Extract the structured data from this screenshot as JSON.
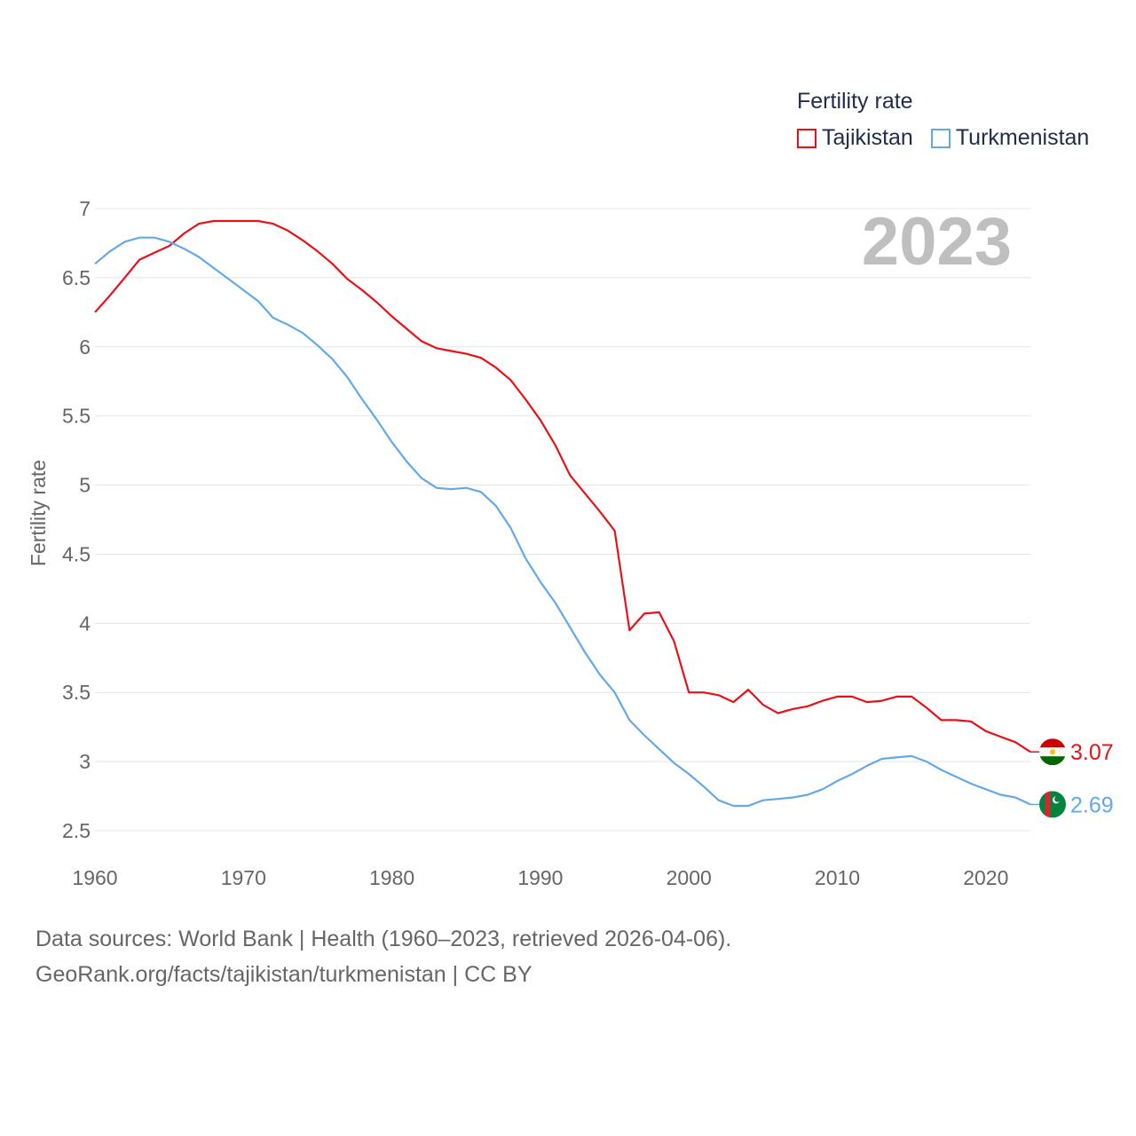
{
  "legend": {
    "title": "Fertility rate",
    "items": [
      {
        "label": "Tajikistan",
        "color": "#e8111a"
      },
      {
        "label": "Turkmenistan",
        "color": "#65a8e6"
      }
    ]
  },
  "footer": {
    "line1": "Data sources: World Bank | Health (1960–2023, retrieved 2026-04-06).",
    "line2": "GeoRank.org/facts/tajikistan/turkmenistan | CC BY"
  },
  "chart_data": {
    "type": "line",
    "title": "2023",
    "xlabel": "",
    "ylabel": "Fertility rate",
    "xlim": [
      1960,
      2023
    ],
    "ylim": [
      2.5,
      7
    ],
    "x_ticks": [
      1960,
      1970,
      1980,
      1990,
      2000,
      2010,
      2020
    ],
    "y_ticks": [
      2.5,
      3,
      3.5,
      4,
      4.5,
      5,
      5.5,
      6,
      6.5,
      7
    ],
    "grid": true,
    "series": [
      {
        "name": "Tajikistan",
        "color": "#e8111a",
        "end_label": "3.07",
        "flag": "tajikistan-flag",
        "values": [
          [
            1960,
            6.25
          ],
          [
            1961,
            6.37
          ],
          [
            1962,
            6.5
          ],
          [
            1963,
            6.63
          ],
          [
            1964,
            6.68
          ],
          [
            1965,
            6.73
          ],
          [
            1966,
            6.82
          ],
          [
            1967,
            6.89
          ],
          [
            1968,
            6.91
          ],
          [
            1969,
            6.91
          ],
          [
            1970,
            6.91
          ],
          [
            1971,
            6.91
          ],
          [
            1972,
            6.89
          ],
          [
            1973,
            6.84
          ],
          [
            1974,
            6.77
          ],
          [
            1975,
            6.69
          ],
          [
            1976,
            6.6
          ],
          [
            1977,
            6.49
          ],
          [
            1978,
            6.41
          ],
          [
            1979,
            6.32
          ],
          [
            1980,
            6.22
          ],
          [
            1981,
            6.13
          ],
          [
            1982,
            6.04
          ],
          [
            1983,
            5.99
          ],
          [
            1984,
            5.97
          ],
          [
            1985,
            5.95
          ],
          [
            1986,
            5.92
          ],
          [
            1987,
            5.85
          ],
          [
            1988,
            5.76
          ],
          [
            1989,
            5.62
          ],
          [
            1990,
            5.47
          ],
          [
            1991,
            5.29
          ],
          [
            1992,
            5.07
          ],
          [
            1993,
            4.94
          ],
          [
            1994,
            4.81
          ],
          [
            1995,
            4.67
          ],
          [
            1996,
            3.95
          ],
          [
            1997,
            4.07
          ],
          [
            1998,
            4.08
          ],
          [
            1999,
            3.87
          ],
          [
            2000,
            3.5
          ],
          [
            2001,
            3.5
          ],
          [
            2002,
            3.48
          ],
          [
            2003,
            3.43
          ],
          [
            2004,
            3.52
          ],
          [
            2005,
            3.41
          ],
          [
            2006,
            3.35
          ],
          [
            2007,
            3.38
          ],
          [
            2008,
            3.4
          ],
          [
            2009,
            3.44
          ],
          [
            2010,
            3.47
          ],
          [
            2011,
            3.47
          ],
          [
            2012,
            3.43
          ],
          [
            2013,
            3.44
          ],
          [
            2014,
            3.47
          ],
          [
            2015,
            3.47
          ],
          [
            2016,
            3.39
          ],
          [
            2017,
            3.3
          ],
          [
            2018,
            3.3
          ],
          [
            2019,
            3.29
          ],
          [
            2020,
            3.22
          ],
          [
            2021,
            3.18
          ],
          [
            2022,
            3.14
          ],
          [
            2023,
            3.07
          ]
        ]
      },
      {
        "name": "Turkmenistan",
        "color": "#65a8e6",
        "end_label": "2.69",
        "flag": "turkmenistan-flag",
        "values": [
          [
            1960,
            6.6
          ],
          [
            1961,
            6.69
          ],
          [
            1962,
            6.76
          ],
          [
            1963,
            6.79
          ],
          [
            1964,
            6.79
          ],
          [
            1965,
            6.76
          ],
          [
            1966,
            6.71
          ],
          [
            1967,
            6.65
          ],
          [
            1968,
            6.57
          ],
          [
            1969,
            6.49
          ],
          [
            1970,
            6.41
          ],
          [
            1971,
            6.33
          ],
          [
            1972,
            6.21
          ],
          [
            1973,
            6.16
          ],
          [
            1974,
            6.1
          ],
          [
            1975,
            6.01
          ],
          [
            1976,
            5.91
          ],
          [
            1977,
            5.78
          ],
          [
            1978,
            5.62
          ],
          [
            1979,
            5.47
          ],
          [
            1980,
            5.31
          ],
          [
            1981,
            5.17
          ],
          [
            1982,
            5.05
          ],
          [
            1983,
            4.98
          ],
          [
            1984,
            4.97
          ],
          [
            1985,
            4.98
          ],
          [
            1986,
            4.95
          ],
          [
            1987,
            4.85
          ],
          [
            1988,
            4.69
          ],
          [
            1989,
            4.47
          ],
          [
            1990,
            4.3
          ],
          [
            1991,
            4.15
          ],
          [
            1992,
            3.97
          ],
          [
            1993,
            3.79
          ],
          [
            1994,
            3.63
          ],
          [
            1995,
            3.5
          ],
          [
            1996,
            3.3
          ],
          [
            1997,
            3.19
          ],
          [
            1998,
            3.09
          ],
          [
            1999,
            2.99
          ],
          [
            2000,
            2.91
          ],
          [
            2001,
            2.82
          ],
          [
            2002,
            2.72
          ],
          [
            2003,
            2.68
          ],
          [
            2004,
            2.68
          ],
          [
            2005,
            2.72
          ],
          [
            2006,
            2.73
          ],
          [
            2007,
            2.74
          ],
          [
            2008,
            2.76
          ],
          [
            2009,
            2.8
          ],
          [
            2010,
            2.86
          ],
          [
            2011,
            2.91
          ],
          [
            2012,
            2.97
          ],
          [
            2013,
            3.02
          ],
          [
            2014,
            3.03
          ],
          [
            2015,
            3.04
          ],
          [
            2016,
            3.0
          ],
          [
            2017,
            2.94
          ],
          [
            2018,
            2.89
          ],
          [
            2019,
            2.84
          ],
          [
            2020,
            2.8
          ],
          [
            2021,
            2.76
          ],
          [
            2022,
            2.74
          ],
          [
            2023,
            2.69
          ]
        ]
      }
    ]
  }
}
